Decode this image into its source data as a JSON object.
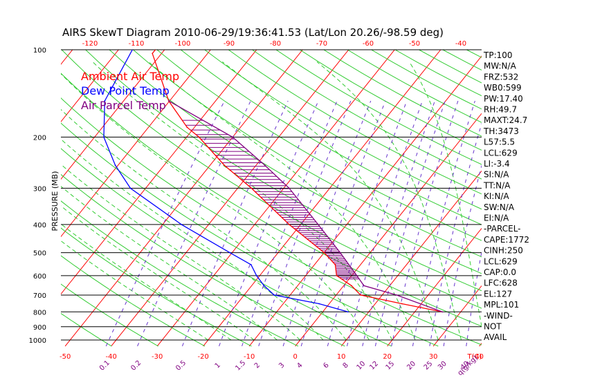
{
  "chart_data": {
    "type": "line",
    "title": "AIRS SkewT Diagram 2010-06-29/19:36:41.53 (Lat/Lon 20.26/-98.59 deg)",
    "ylabel": "PRESSURE (MB)",
    "xlabel_bottom": "T(C)",
    "mixing_ratio_label": "q(g/kg)",
    "y_scale": "log",
    "ylim": [
      1050,
      100
    ],
    "xlim_bottom": [
      -52,
      40
    ],
    "pressure_ticks": [
      100,
      200,
      300,
      400,
      500,
      600,
      700,
      800,
      900,
      1000
    ],
    "bottom_temp_ticks": [
      -50,
      -40,
      -30,
      -20,
      -10,
      0,
      10,
      20,
      30,
      40
    ],
    "top_temp_ticks": [
      -120,
      -110,
      -100,
      -90,
      -80,
      -70,
      -60,
      -50,
      -40
    ],
    "mixing_ratio_ticks": [
      "0.1",
      "0.2",
      "0.5",
      "1",
      "1.5",
      "2",
      "3",
      "4",
      "6",
      "8",
      "10",
      "12",
      "15",
      "20",
      "25",
      "30",
      "40"
    ],
    "mixing_ratio_values": [
      0.1,
      0.2,
      0.5,
      1,
      1.5,
      2,
      3,
      4,
      6,
      8,
      10,
      12,
      15,
      20,
      25,
      30,
      40
    ],
    "legend": [
      {
        "label": "Ambient Air Temp",
        "color": "#ff0000"
      },
      {
        "label": "Dew Point Temp",
        "color": "#0000ff"
      },
      {
        "label": "Air Parcel Temp",
        "color": "#800080"
      }
    ],
    "series": [
      {
        "name": "Ambient Air Temp",
        "color": "#ff0000",
        "pressure": [
          100,
          103,
          150,
          185,
          200,
          250,
          300,
          400,
          500,
          550,
          600,
          650,
          700,
          750,
          800
        ],
        "values": [
          -82,
          -82,
          -70.2,
          -61.6,
          -57.3,
          -46.9,
          -37,
          -22.5,
          -10,
          -5.5,
          -3.3,
          1.7,
          5.3,
          15.8,
          26
        ]
      },
      {
        "name": "Dew Point Temp",
        "color": "#0000ff",
        "pressure": [
          100,
          150,
          200,
          250,
          300,
          400,
          500,
          550,
          600,
          650,
          700,
          750,
          800
        ],
        "values": [
          -87,
          -84.1,
          -78,
          -70.6,
          -63.3,
          -45.9,
          -30.5,
          -23.8,
          -20.7,
          -17.3,
          -13.5,
          -2.2,
          5.5
        ]
      },
      {
        "name": "Air Parcel Temp",
        "color": "#800080",
        "pressure": [
          150,
          200,
          250,
          300,
          400,
          500,
          600,
          650,
          700,
          800
        ],
        "values": [
          -70.2,
          -50,
          -38.1,
          -28.8,
          -16.2,
          -6.5,
          1.1,
          4.4,
          13.1,
          26
        ]
      }
    ],
    "dry_adiabats_theta_K": [
      230,
      240,
      250,
      260,
      270,
      280,
      290,
      300,
      310,
      320,
      330,
      340,
      350,
      360,
      370,
      380,
      390,
      400,
      410,
      420,
      430,
      440,
      450,
      460,
      470,
      480,
      490,
      500,
      510,
      520,
      530,
      540,
      550,
      560,
      580,
      600,
      620,
      640,
      660
    ],
    "moist_adiabats_thetaw_C": [
      -20,
      -15,
      -10,
      -5,
      0,
      5,
      10,
      15,
      20,
      25,
      30,
      35,
      40
    ],
    "isotherm_step_C": 10,
    "cape_shading": "purple hatching between ambient and parcel, 175–620 mb"
  },
  "sidebar": {
    "items": [
      "TP:100",
      "MW:N/A",
      "FRZ:532",
      "WB0:599",
      "PW:17.40",
      "RH:49.7",
      "MAXT:24.7",
      "TH:3473",
      "L57:5.5",
      "LCL:629",
      "LI:-3.4",
      "SI:N/A",
      "TT:N/A",
      "KI:N/A",
      "SW:N/A",
      "EI:N/A",
      "-PARCEL-",
      "CAPE:1772",
      "CINH:250",
      "LCL:629",
      "CAP:0.0",
      "LFC:628",
      "EL:127",
      "MPL:101",
      "-WIND-",
      "NOT",
      "AVAIL"
    ]
  },
  "colors": {
    "ambient": "#ff0000",
    "dewpoint": "#0000ff",
    "parcel": "#800080",
    "isotherm": "#ff0000",
    "dry_adiabat": "#33cc33",
    "moist_adiabat": "#33cc33",
    "mixing_ratio": "#6633cc",
    "isobar": "#000000",
    "bottom_tick": "#ff0000",
    "top_tick": "#ff0000",
    "mixing_tick": "#800080"
  }
}
